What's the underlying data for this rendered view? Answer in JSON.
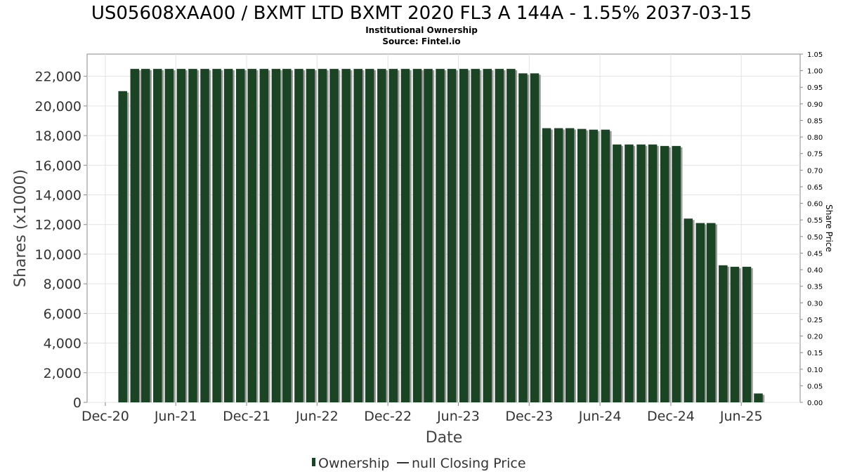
{
  "chart_data": {
    "type": "bar",
    "title": "US05608XAA00 / BXMT LTD BXMT 2020 FL3 A 144A - 1.55% 2037-03-15",
    "subtitle_lines": [
      "Institutional Ownership",
      "Source: Fintel.io"
    ],
    "xlabel": "Date",
    "ylabel": "Shares (x1000)",
    "y2label": "Share Price",
    "ylim": [
      0,
      23500
    ],
    "y_ticks": [
      0,
      2000,
      4000,
      6000,
      8000,
      10000,
      12000,
      14000,
      16000,
      18000,
      20000,
      22000
    ],
    "y_tick_labels": [
      "0",
      "2,000",
      "4,000",
      "6,000",
      "8,000",
      "10,000",
      "12,000",
      "14,000",
      "16,000",
      "18,000",
      "20,000",
      "22,000"
    ],
    "y2lim": [
      0,
      1.05
    ],
    "y2_tick_labels": [
      "0.00",
      "0.05",
      "0.10",
      "0.15",
      "0.20",
      "0.25",
      "0.30",
      "0.35",
      "0.40",
      "0.45",
      "0.50",
      "0.55",
      "0.60",
      "0.65",
      "0.70",
      "0.75",
      "0.80",
      "0.85",
      "0.90",
      "0.95",
      "1.00",
      "1.05"
    ],
    "x_range": [
      "2020-10-15",
      "2025-10-31"
    ],
    "x_ticks": [
      {
        "date": "2020-12-01",
        "label": "Dec-20"
      },
      {
        "date": "2021-06-01",
        "label": "Jun-21"
      },
      {
        "date": "2021-12-01",
        "label": "Dec-21"
      },
      {
        "date": "2022-06-01",
        "label": "Jun-22"
      },
      {
        "date": "2022-12-01",
        "label": "Dec-22"
      },
      {
        "date": "2023-06-01",
        "label": "Jun-23"
      },
      {
        "date": "2023-12-01",
        "label": "Dec-23"
      },
      {
        "date": "2024-06-01",
        "label": "Jun-24"
      },
      {
        "date": "2024-12-01",
        "label": "Dec-24"
      },
      {
        "date": "2025-06-01",
        "label": "Jun-25"
      }
    ],
    "bar_color": "#1b4424",
    "grid": true,
    "legend_position": "bottom",
    "series": [
      {
        "name": "Ownership",
        "x": [
          "2021-01",
          "2021-02",
          "2021-03",
          "2021-04",
          "2021-05",
          "2021-06",
          "2021-07",
          "2021-08",
          "2021-09",
          "2021-10",
          "2021-11",
          "2021-12",
          "2022-01",
          "2022-02",
          "2022-03",
          "2022-04",
          "2022-05",
          "2022-06",
          "2022-07",
          "2022-08",
          "2022-09",
          "2022-10",
          "2022-11",
          "2022-12",
          "2023-01",
          "2023-02",
          "2023-03",
          "2023-04",
          "2023-05",
          "2023-06",
          "2023-07",
          "2023-08",
          "2023-09",
          "2023-10",
          "2023-11",
          "2023-12",
          "2024-01",
          "2024-02",
          "2024-03",
          "2024-04",
          "2024-05",
          "2024-06",
          "2024-07",
          "2024-08",
          "2024-09",
          "2024-10",
          "2024-11",
          "2024-12",
          "2025-01",
          "2025-02",
          "2025-03",
          "2025-04",
          "2025-05",
          "2025-06",
          "2025-07"
        ],
        "values": [
          21000,
          22500,
          22500,
          22500,
          22500,
          22500,
          22500,
          22500,
          22500,
          22500,
          22500,
          22500,
          22500,
          22500,
          22500,
          22500,
          22500,
          22500,
          22500,
          22500,
          22500,
          22500,
          22500,
          22500,
          22500,
          22500,
          22500,
          22500,
          22500,
          22500,
          22500,
          22500,
          22500,
          22500,
          22200,
          22200,
          18500,
          18500,
          18500,
          18450,
          18400,
          18400,
          17400,
          17400,
          17400,
          17400,
          17300,
          17300,
          12400,
          12100,
          12100,
          9250,
          9150,
          9150,
          600
        ]
      },
      {
        "name": "null Closing Price",
        "values": []
      }
    ]
  }
}
